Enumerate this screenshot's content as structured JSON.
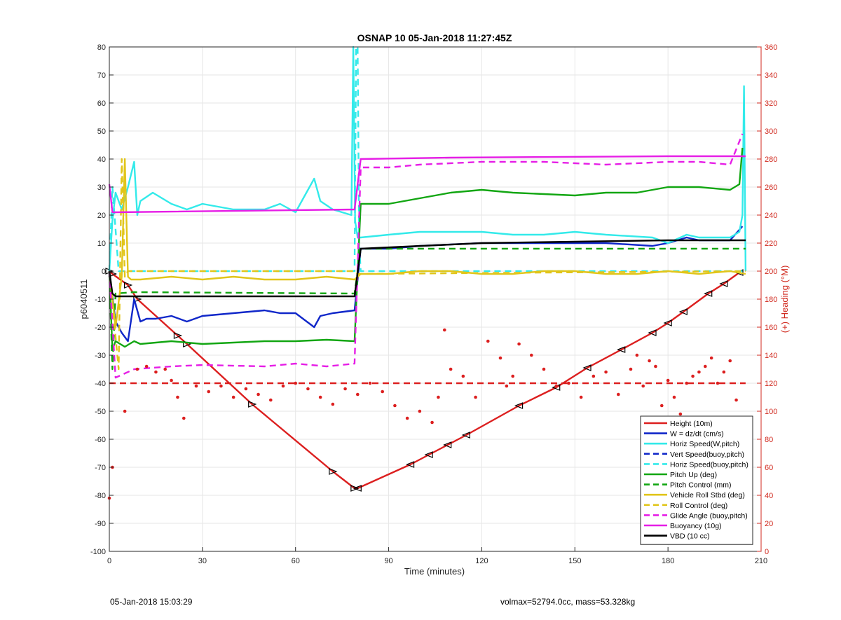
{
  "footer": {
    "left": "05-Jan-2018 15:03:29",
    "right": "volmax=52794.0cc, mass=53.328kg"
  },
  "colors": {
    "red": "#dc1f1f",
    "blue": "#1027c9",
    "cyan": "#33eaea",
    "green": "#12a612",
    "gold": "#e1c51a",
    "magenta": "#e61ee6",
    "black": "#000000",
    "right_axis": "#d12a1f"
  },
  "chart_data": {
    "type": "line",
    "title": "OSNAP 10 05-Jan-2018 11:27:45Z",
    "xlabel": "Time (minutes)",
    "ylabel": "p6040511",
    "ylabel_right": "(+) Heading (°M)",
    "xlim": [
      0,
      210
    ],
    "ylim": [
      -100,
      80
    ],
    "ylim_right": [
      0,
      360
    ],
    "xticks": [
      0,
      30,
      60,
      90,
      120,
      150,
      180,
      210
    ],
    "yticks": [
      -100,
      -90,
      -80,
      -70,
      -60,
      -50,
      -40,
      -30,
      -20,
      -10,
      0,
      10,
      20,
      30,
      40,
      50,
      60,
      70,
      80
    ],
    "yticks_right": [
      0,
      20,
      40,
      60,
      80,
      100,
      120,
      140,
      160,
      180,
      200,
      220,
      240,
      260,
      280,
      300,
      320,
      340,
      360
    ],
    "grid": true,
    "legend_position": "bottom-right",
    "series": [
      {
        "name": "Height (10m)",
        "color": "#dc1f1f",
        "style": "solid",
        "markers": true,
        "x": [
          0,
          1,
          6,
          9,
          22,
          25,
          46,
          72,
          79,
          80,
          97,
          103,
          109,
          115,
          132,
          144,
          154,
          165,
          175,
          180,
          185,
          193,
          198,
          203
        ],
        "y": [
          0,
          -1,
          -5,
          -10,
          -23,
          -26,
          -47.5,
          -71.5,
          -77.5,
          -77.5,
          -69,
          -65.5,
          -62,
          -58.5,
          -48,
          -41.5,
          -34.5,
          -28,
          -22,
          -18.5,
          -14.5,
          -8,
          -4.5,
          -0.5
        ]
      },
      {
        "name": "W = dz/dt (cm/s)",
        "color": "#1027c9",
        "style": "solid",
        "x": [
          0,
          2,
          4,
          6,
          8,
          10,
          12,
          15,
          20,
          25,
          30,
          40,
          50,
          55,
          60,
          66,
          68,
          72,
          79,
          81,
          90,
          100,
          120,
          140,
          160,
          175,
          180,
          186,
          190,
          200,
          204
        ],
        "y": [
          0,
          -18,
          -22,
          -25,
          -10,
          -18,
          -17,
          -17,
          -16,
          -18,
          -16,
          -15,
          -14,
          -15,
          -15,
          -20,
          -16,
          -15,
          -14,
          8,
          8,
          9,
          10,
          10,
          10,
          9,
          10,
          12,
          11,
          11,
          16
        ]
      },
      {
        "name": "Horiz Speed(W,pitch)",
        "color": "#33eaea",
        "style": "solid",
        "x": [
          0,
          1,
          2,
          4,
          6,
          8,
          9,
          10,
          14,
          20,
          25,
          30,
          40,
          50,
          55,
          60,
          66,
          68,
          72,
          78,
          78.6,
          79.2,
          80,
          81,
          90,
          100,
          110,
          120,
          130,
          140,
          150,
          160,
          175,
          180,
          186,
          190,
          200,
          203,
          204,
          204.5,
          205
        ],
        "y": [
          0,
          18,
          28,
          22,
          30,
          39,
          20,
          25,
          28,
          24,
          22,
          24,
          22,
          22,
          24,
          21,
          33,
          25,
          22,
          20,
          80,
          18,
          12,
          12,
          13,
          14,
          14,
          14,
          13,
          13,
          14,
          13,
          12,
          10,
          13,
          12,
          12,
          14,
          20,
          66,
          0
        ]
      },
      {
        "name": "Vert Speed(buoy,pitch)",
        "color": "#1027c9",
        "style": "dashed",
        "x": [],
        "y": []
      },
      {
        "name": "Horiz Speed(buoy,pitch)",
        "color": "#33eaea",
        "style": "dashed",
        "x": [
          0,
          1,
          3,
          79,
          79.5,
          80,
          80.5,
          81,
          205
        ],
        "y": [
          0,
          30,
          0,
          0,
          80,
          80,
          10,
          0,
          0
        ]
      },
      {
        "name": "Pitch Up (deg)",
        "color": "#12a612",
        "style": "solid",
        "x": [
          0,
          1,
          2,
          5,
          8,
          10,
          20,
          30,
          40,
          50,
          60,
          70,
          79,
          81,
          90,
          100,
          110,
          120,
          130,
          140,
          150,
          160,
          170,
          180,
          190,
          200,
          203,
          204
        ],
        "y": [
          0,
          -28,
          -25,
          -27,
          -25,
          -26,
          -25,
          -26,
          -25.5,
          -25,
          -25,
          -24.5,
          -25,
          24,
          24,
          26,
          28,
          29,
          28,
          27.5,
          27,
          28,
          28,
          30,
          30,
          29,
          31,
          44
        ]
      },
      {
        "name": "Pitch Control (mm)",
        "color": "#12a612",
        "style": "dashed",
        "x": [
          0,
          1,
          2,
          8,
          79,
          81,
          205
        ],
        "y": [
          0,
          -35,
          -8,
          -7.5,
          -8,
          8,
          8
        ]
      },
      {
        "name": "Vehicle Roll Stbd (deg)",
        "color": "#e1c51a",
        "style": "solid",
        "x": [
          0,
          2,
          4,
          5,
          6,
          7,
          10,
          20,
          30,
          40,
          50,
          60,
          70,
          79,
          81,
          90,
          100,
          110,
          120,
          130,
          140,
          150,
          160,
          170,
          180,
          190,
          200,
          205
        ],
        "y": [
          0,
          -20,
          -2,
          40,
          -2,
          -3,
          -3,
          -2,
          -3,
          -2,
          -3,
          -3,
          -2,
          -3,
          -1,
          -1,
          0,
          0,
          -1,
          -1,
          0,
          0,
          -1,
          -1,
          0,
          -1,
          0,
          -1
        ]
      },
      {
        "name": "Roll Control (deg)",
        "color": "#e1c51a",
        "style": "dashed",
        "x": [
          0,
          3,
          4,
          5,
          6,
          79,
          80,
          205
        ],
        "y": [
          0,
          -35,
          40,
          -2,
          0,
          0,
          -1,
          0
        ]
      },
      {
        "name": "Glide Angle (buoy,pitch)",
        "color": "#e61ee6",
        "style": "dashed",
        "x": [
          0,
          2,
          8,
          20,
          30,
          50,
          60,
          70,
          79,
          81,
          90,
          100,
          120,
          140,
          160,
          180,
          190,
          200,
          204
        ],
        "y": [
          0,
          -38,
          -35,
          -34,
          -33.5,
          -34,
          -33,
          -34,
          -33,
          37,
          37,
          38,
          39,
          39,
          38,
          39,
          39,
          38,
          49
        ]
      },
      {
        "name": "Buoyancy (10g)",
        "color": "#e61ee6",
        "style": "solid",
        "x": [
          0,
          1,
          2,
          79,
          81,
          110,
          180,
          205
        ],
        "y": [
          31,
          21,
          21,
          22,
          40,
          40.5,
          41,
          41
        ]
      },
      {
        "name": "VBD (10 cc)",
        "color": "#000000",
        "style": "solid",
        "x": [
          0,
          1,
          2,
          79,
          81,
          120,
          150,
          180,
          205
        ],
        "y": [
          0,
          -8,
          -9,
          -9,
          8,
          10,
          10.5,
          11,
          11
        ]
      },
      {
        "name": "",
        "color": "#dc1f1f",
        "style": "dashed",
        "axis": "right",
        "x": [
          0,
          205
        ],
        "y": [
          120,
          120
        ]
      },
      {
        "name": "",
        "color": "#dc1f1f",
        "style": "dots",
        "axis": "right",
        "x": [
          0,
          1,
          5,
          9,
          12,
          15,
          18,
          20,
          22,
          24,
          28,
          32,
          36,
          40,
          44,
          48,
          52,
          56,
          60,
          64,
          68,
          72,
          76,
          80,
          84,
          88,
          92,
          96,
          100,
          104,
          106,
          108,
          110,
          114,
          118,
          122,
          126,
          128,
          130,
          132,
          136,
          140,
          144,
          148,
          152,
          156,
          160,
          164,
          168,
          170,
          172,
          174,
          176,
          178,
          180,
          182,
          184,
          186,
          188,
          190,
          192,
          194,
          196,
          198,
          200,
          202,
          204
        ],
        "y": [
          38,
          60,
          100,
          130,
          132,
          128,
          130,
          122,
          110,
          95,
          118,
          114,
          118,
          110,
          116,
          112,
          108,
          118,
          120,
          116,
          110,
          105,
          116,
          112,
          120,
          114,
          104,
          95,
          100,
          92,
          110,
          158,
          130,
          125,
          110,
          150,
          138,
          118,
          125,
          148,
          140,
          130,
          118,
          120,
          110,
          125,
          128,
          112,
          130,
          140,
          118,
          136,
          132,
          104,
          122,
          110,
          98,
          120,
          125,
          128,
          132,
          138,
          120,
          128,
          136,
          108,
          92
        ]
      }
    ]
  }
}
